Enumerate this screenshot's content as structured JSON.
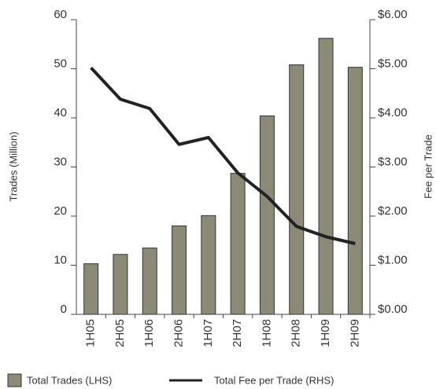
{
  "chart_data": {
    "type": "bar_line",
    "categories": [
      "1H05",
      "2H05",
      "1H06",
      "2H06",
      "1H07",
      "2H07",
      "1H08",
      "2H08",
      "1H09",
      "2H09"
    ],
    "series": [
      {
        "name": "Total Trades (LHS)",
        "type": "bar",
        "color": "#8c8a77",
        "values": [
          10.3,
          12.2,
          13.5,
          18.0,
          20.1,
          28.7,
          40.4,
          50.8,
          56.2,
          50.3
        ]
      },
      {
        "name": "Total Fee per Trade (RHS)",
        "type": "line",
        "axis": "y2",
        "color": "#222222",
        "values": [
          5.02,
          4.38,
          4.19,
          3.46,
          3.6,
          2.88,
          2.4,
          1.79,
          1.58,
          1.44
        ]
      }
    ],
    "ylabel": "Trades (Million)",
    "y2label": "Fee per Trade",
    "ylim": [
      0,
      60
    ],
    "yticks": [
      0,
      10,
      20,
      30,
      40,
      50,
      60
    ],
    "y2lim": [
      0,
      6
    ],
    "y2ticks": [
      {
        "value": 0,
        "label": "$0.00"
      },
      {
        "value": 1,
        "label": "$1.00"
      },
      {
        "value": 2,
        "label": "$2.00"
      },
      {
        "value": 3,
        "label": "$3.00"
      },
      {
        "value": 4,
        "label": "$4.00"
      },
      {
        "value": 5,
        "label": "$5.00"
      },
      {
        "value": 6,
        "label": "$6.00"
      }
    ],
    "legend": "bottom"
  }
}
